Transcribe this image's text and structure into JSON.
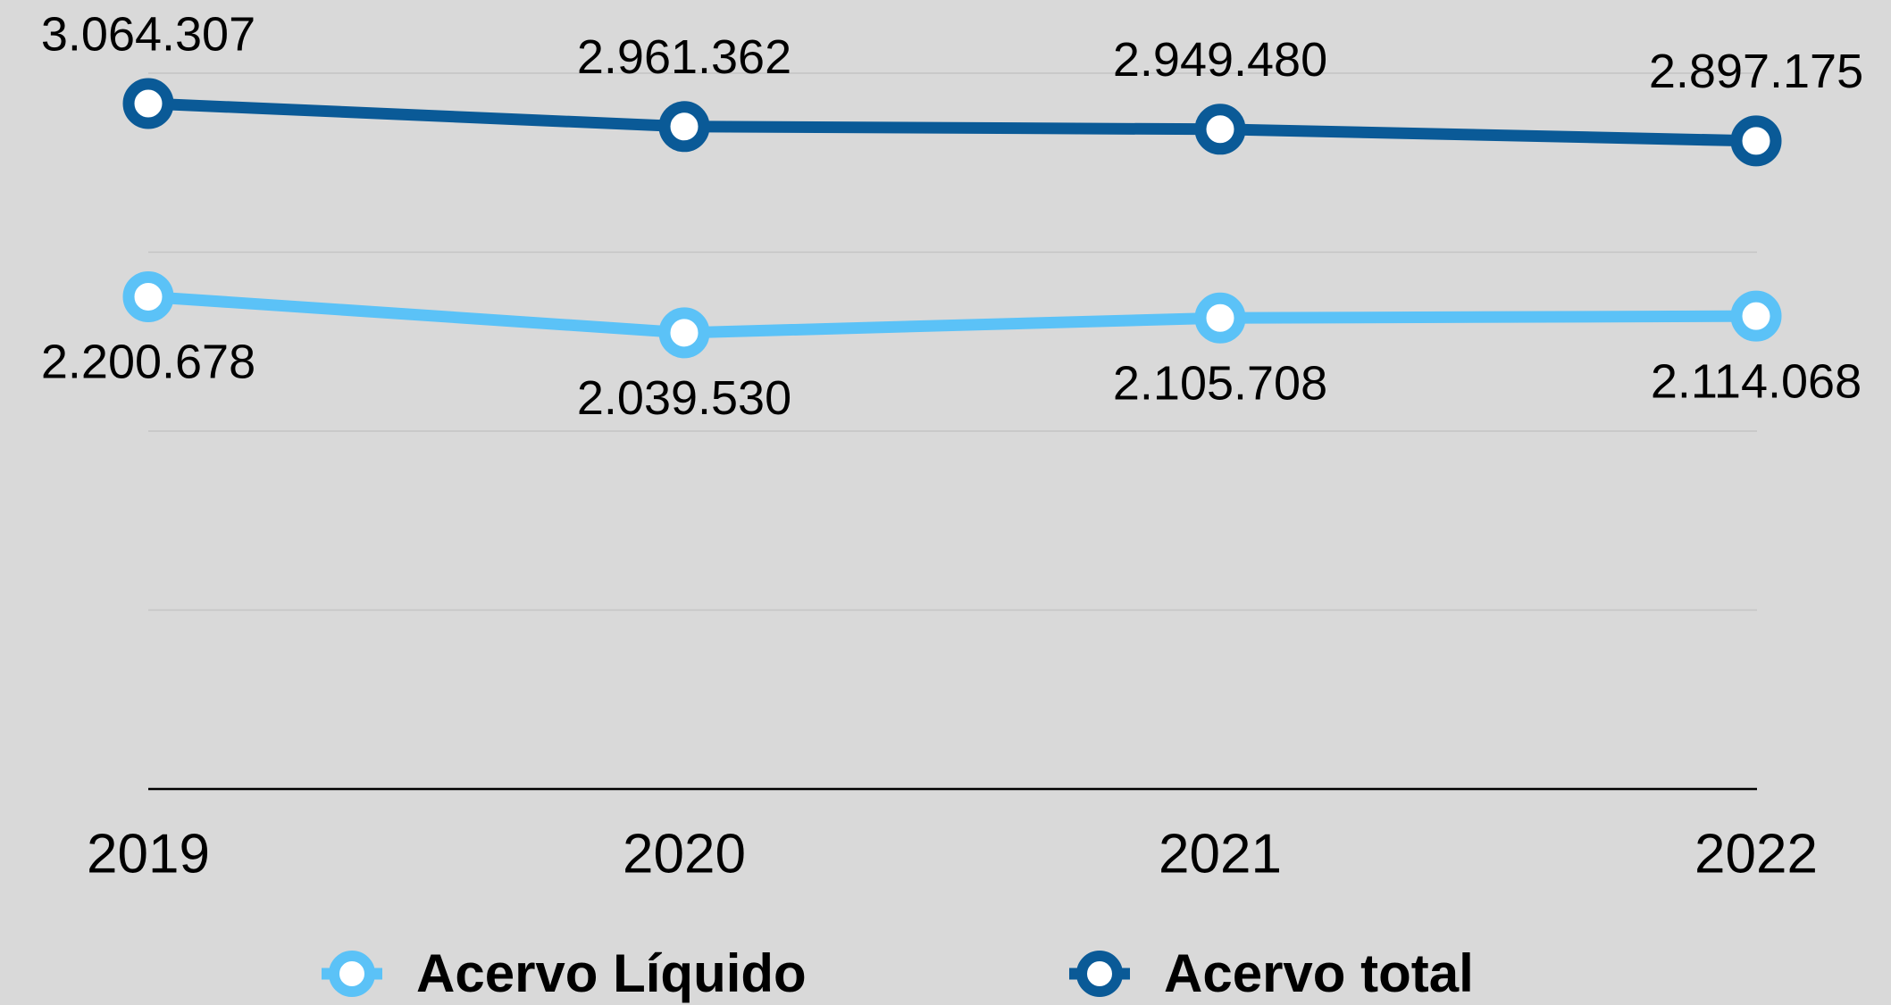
{
  "chart_data": {
    "type": "line",
    "categories": [
      "2019",
      "2020",
      "2021",
      "2022"
    ],
    "series": [
      {
        "name": "Acervo Líquido",
        "color": "#5bc2f7",
        "values": [
          2200678,
          2039530,
          2105708,
          2114068
        ],
        "value_labels": [
          "2.200.678",
          "2.039.530",
          "2.105.708",
          "2.114.068"
        ],
        "label_position": "below"
      },
      {
        "name": "Acervo total",
        "color": "#0a5a97",
        "values": [
          3064307,
          2961362,
          2949480,
          2897175
        ],
        "value_labels": [
          "3.064.307",
          "2.961.362",
          "2.949.480",
          "2.897.175"
        ],
        "label_position": "above"
      }
    ],
    "ylim": [
      0,
      3200000
    ],
    "yticks": [
      0,
      800000,
      1600000,
      2400000,
      3200000
    ],
    "grid": true,
    "legend": "bottom"
  }
}
